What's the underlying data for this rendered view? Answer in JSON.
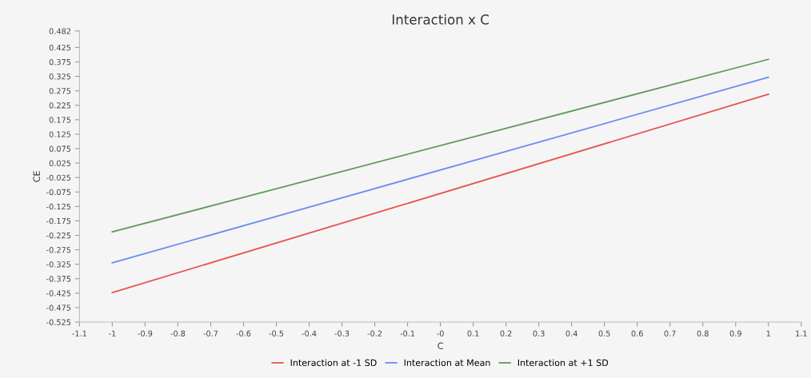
{
  "chart_data": {
    "type": "line",
    "title": "Interaction x C",
    "xlabel": "C",
    "ylabel": "CE",
    "x": [
      -1,
      1
    ],
    "series": [
      {
        "name": "Interaction at -1 SD",
        "color": "#e8534f",
        "values": [
          -0.423,
          0.263
        ]
      },
      {
        "name": "Interaction at Mean",
        "color": "#6a8cf0",
        "values": [
          -0.32,
          0.322
        ]
      },
      {
        "name": "Interaction at +1 SD",
        "color": "#5f9a5a",
        "values": [
          -0.213,
          0.384
        ]
      }
    ],
    "xlim": [
      -1.1,
      1.1
    ],
    "xticks": [
      -1.1,
      -1,
      -0.9,
      -0.8,
      -0.7,
      -0.6,
      -0.5,
      -0.4,
      -0.3,
      -0.2,
      -0.1,
      {
        "value": 0,
        "label": "-0"
      },
      0.1,
      0.2,
      0.3,
      0.4,
      0.5,
      0.6,
      0.7,
      0.8,
      0.9,
      1,
      1.1
    ],
    "ylim": [
      -0.525,
      0.482
    ],
    "yticks": [
      -0.525,
      -0.475,
      -0.425,
      -0.375,
      -0.325,
      -0.275,
      -0.225,
      -0.175,
      -0.125,
      -0.075,
      -0.025,
      0.025,
      0.075,
      0.125,
      0.175,
      0.225,
      0.275,
      0.325,
      0.375,
      0.425,
      0.482
    ],
    "grid": false,
    "legend": "bottom",
    "marker": "none",
    "line_style": "solid"
  }
}
